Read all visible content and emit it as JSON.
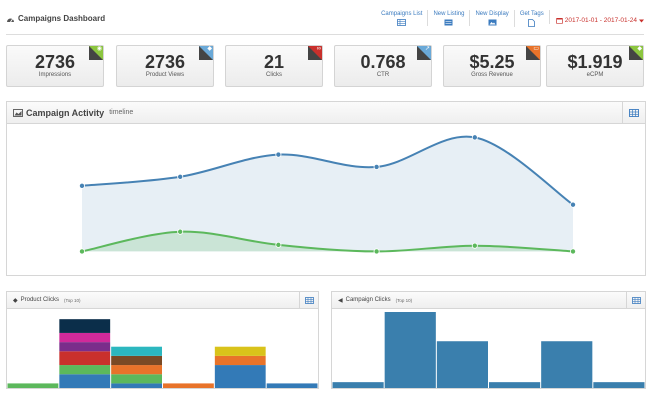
{
  "header": {
    "title": "Campaigns Dashboard",
    "links": [
      {
        "label": "Campaigns List",
        "icon": "table-icon"
      },
      {
        "label": "New Listing",
        "icon": "list-icon"
      },
      {
        "label": "New Display",
        "icon": "image-icon"
      },
      {
        "label": "Get Tags",
        "icon": "document-icon"
      }
    ],
    "date_range": "2017-01-01 - 2017-01-24"
  },
  "stats": [
    {
      "value": "2736",
      "label": "Impressions",
      "color": "#8cc63f",
      "icon": "eye-icon"
    },
    {
      "value": "2736",
      "label": "Product Views",
      "color": "#6aa9d8",
      "icon": "tag-icon"
    },
    {
      "value": "21",
      "label": "Clicks",
      "color": "#c9302c",
      "icon": "link-icon"
    },
    {
      "value": "0.768",
      "label": "CTR",
      "color": "#6aa9d8",
      "icon": "share-icon"
    },
    {
      "value": "$5.25",
      "label": "Gross Revenue",
      "color": "#e8732a",
      "icon": "money-icon"
    },
    {
      "value": "$1.919",
      "label": "eCPM",
      "color": "#8cc63f",
      "icon": "tag-icon"
    }
  ],
  "activity": {
    "title": "Campaign Activity",
    "subtitle": "timeline"
  },
  "product_clicks": {
    "title": "Product Clicks",
    "subtitle": "(Top 10)"
  },
  "campaign_clicks": {
    "title": "Campaign Clicks",
    "subtitle": "(Top 10)"
  },
  "chart_data": [
    {
      "type": "area",
      "series": [
        {
          "color": "#4682b4",
          "values": [
            2.0,
            2.55,
            3.9,
            3.15,
            4.95,
            0.85
          ]
        },
        {
          "color": "#5cb85c",
          "values": [
            -2.0,
            -0.8,
            -1.6,
            -2.0,
            -1.65,
            -2.0
          ]
        }
      ]
    },
    {
      "type": "bar",
      "stacked": true,
      "values": [
        [
          {
            "v": 1,
            "color": "#5cb85c"
          }
        ],
        [
          {
            "v": 3,
            "color": "#337ab7"
          },
          {
            "v": 2,
            "color": "#5cb85c"
          },
          {
            "v": 3,
            "color": "#c9302c"
          },
          {
            "v": 2,
            "color": "#7b2d8b"
          },
          {
            "v": 2,
            "color": "#d12a9a"
          },
          {
            "v": 3,
            "color": "#0b2e4a"
          }
        ],
        [
          {
            "v": 1,
            "color": "#337ab7"
          },
          {
            "v": 2,
            "color": "#5cb85c"
          },
          {
            "v": 2,
            "color": "#e8732a"
          },
          {
            "v": 2,
            "color": "#7a4a25"
          },
          {
            "v": 2,
            "color": "#2cb7bf"
          }
        ],
        [
          {
            "v": 1,
            "color": "#e8732a"
          }
        ],
        [
          {
            "v": 5,
            "color": "#337ab7"
          },
          {
            "v": 2,
            "color": "#e8732a"
          },
          {
            "v": 2,
            "color": "#d9c31a"
          }
        ],
        [
          {
            "v": 1,
            "color": "#337ab7"
          }
        ]
      ],
      "ylim": [
        0,
        17
      ]
    },
    {
      "type": "bar",
      "values": [
        1,
        13,
        8,
        1,
        8,
        1
      ],
      "color": "#3a7fad",
      "ylim": [
        0,
        13
      ]
    }
  ]
}
